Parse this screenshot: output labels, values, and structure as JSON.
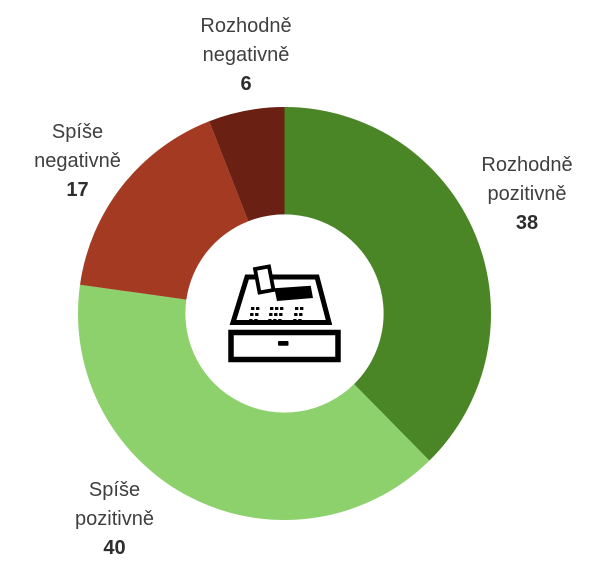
{
  "chart_data": {
    "type": "pie",
    "variant": "donut",
    "title": "",
    "categories": [
      "Rozhodně pozitivně",
      "Spíše pozitivně",
      "Spíše negativně",
      "Rozhodně negativně"
    ],
    "values": [
      38,
      40,
      17,
      6
    ],
    "colors": [
      "#4a8526",
      "#8dd16d",
      "#a53a22",
      "#6a2013"
    ],
    "labels_wrapped": [
      [
        "Rozhodně",
        "pozitivně"
      ],
      [
        "Spíše",
        "pozitivně"
      ],
      [
        "Spíše",
        "negativně"
      ],
      [
        "Rozhodně",
        "negativně"
      ]
    ],
    "label_color": "#3f3f3f",
    "value_color": "#2e2e2e",
    "background": "#ffffff",
    "start_angle_deg": 0,
    "direction": "clockwise",
    "inner_radius_ratio": 0.48,
    "legend": "none",
    "center_icon": "cash-register-icon",
    "icon_color": "#000000"
  }
}
